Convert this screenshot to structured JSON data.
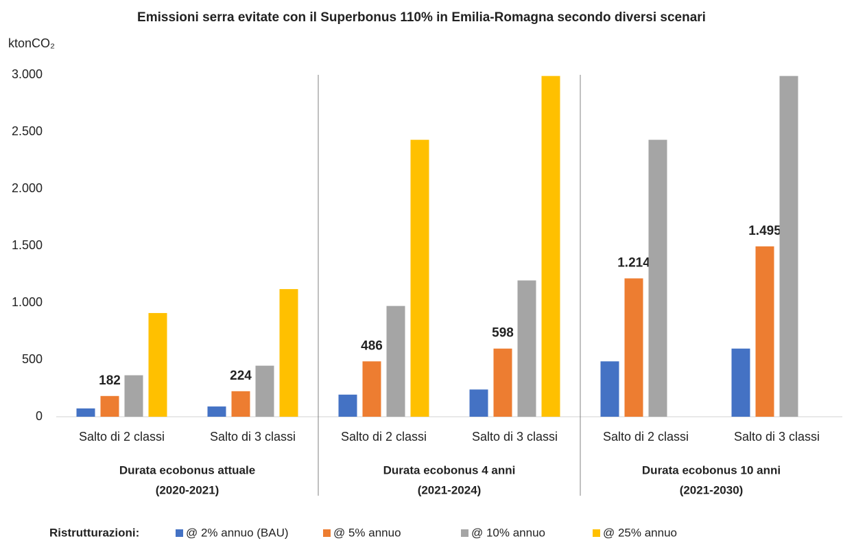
{
  "chart_data": {
    "type": "bar",
    "title": "Emissioni serra evitate con il Superbonus 110% in Emilia-Romagna secondo diversi scenari",
    "ylabel": "ktonCO₂",
    "categories": [
      "Salto di 2 classi",
      "Salto di 3 classi",
      "Salto di 2 classi",
      "Salto di 3 classi",
      "Salto di 2 classi",
      "Salto di 3 classi"
    ],
    "groups": [
      [
        "Durata ecobonus attuale",
        "(2020-2021)"
      ],
      [
        "Durata ecobonus 4 anni",
        "(2021-2024)"
      ],
      [
        "Durata ecobonus 10 anni",
        "(2021-2030)"
      ]
    ],
    "legend_title": "Ristrutturazioni:",
    "series": [
      {
        "name": "@ 2% annuo (BAU)",
        "color": "#4472c4",
        "values": [
          73,
          90,
          194,
          239,
          486,
          598
        ]
      },
      {
        "name": "@ 5% annuo",
        "color": "#ed7d31",
        "values": [
          182,
          224,
          486,
          598,
          1214,
          1495
        ],
        "value_labels": [
          "182",
          "224",
          "486",
          "598",
          "1.214",
          "1.495"
        ]
      },
      {
        "name": "@ 10% annuo",
        "color": "#a5a5a5",
        "values": [
          364,
          448,
          972,
          1196,
          2430,
          2990
        ]
      },
      {
        "name": "@ 25% annuo",
        "color": "#ffc000",
        "values": [
          910,
          1120,
          2430,
          2990,
          null,
          null
        ]
      }
    ],
    "ylim": [
      0,
      3000
    ],
    "yticks": [
      0,
      500,
      {
        "value": 1000,
        "label": "1.000"
      },
      {
        "value": 1500,
        "label": "1.500"
      },
      {
        "value": 2000,
        "label": "2.000"
      },
      {
        "value": 2500,
        "label": "2.500"
      },
      {
        "value": 3000,
        "label": "3.000"
      }
    ],
    "grid": false
  }
}
